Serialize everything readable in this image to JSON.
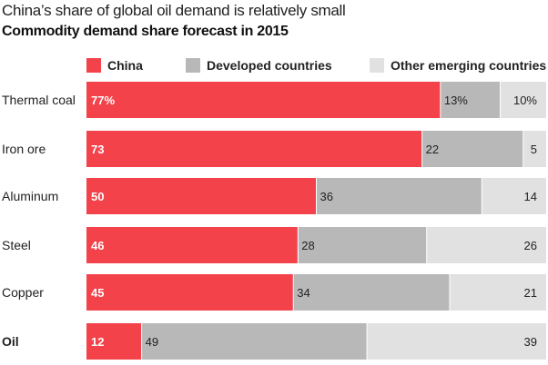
{
  "title": "China’s share of global oil demand is relatively small",
  "subtitle": "Commodity demand share forecast in 2015",
  "colors": {
    "china": "#f4424b",
    "developed": "#b8b8b8",
    "other": "#e1e1e1"
  },
  "chart_data": {
    "type": "bar",
    "orientation": "horizontal",
    "stacked": true,
    "categories": [
      "Thermal coal",
      "Iron ore",
      "Aluminum",
      "Steel",
      "Copper",
      "Oil"
    ],
    "highlight_category": "Oil",
    "series": [
      {
        "name": "China",
        "values": [
          77,
          73,
          50,
          46,
          45,
          12
        ]
      },
      {
        "name": "Developed countries",
        "values": [
          13,
          22,
          36,
          28,
          34,
          49
        ]
      },
      {
        "name": "Other emerging countries",
        "values": [
          10,
          5,
          14,
          26,
          21,
          39
        ]
      }
    ],
    "value_labels": [
      [
        "77%",
        "13%",
        "10%"
      ],
      [
        "73",
        "22",
        "5"
      ],
      [
        "50",
        "36",
        "14"
      ],
      [
        "46",
        "28",
        "26"
      ],
      [
        "45",
        "34",
        "21"
      ],
      [
        "12",
        "49",
        "39"
      ]
    ],
    "xlim": [
      0,
      100
    ],
    "legend_position": "top",
    "grid": false
  }
}
